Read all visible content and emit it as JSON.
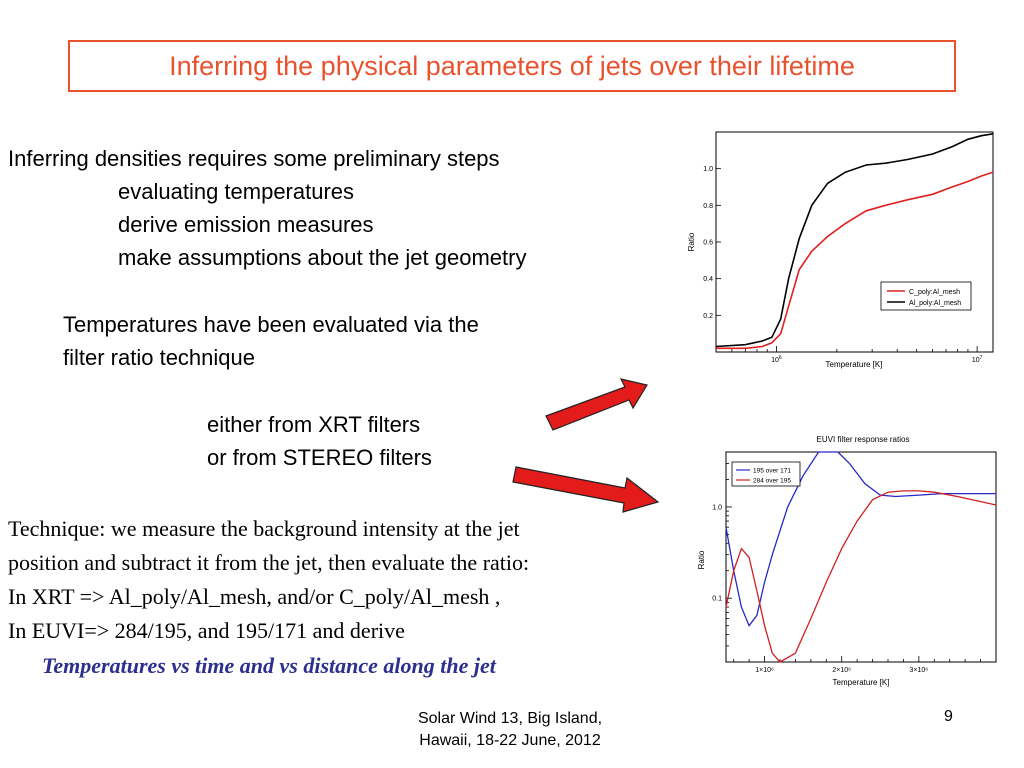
{
  "title": "Inferring the physical parameters of jets over their lifetime",
  "intro": {
    "heading": "Inferring densities requires some preliminary steps",
    "steps": [
      "evaluating temperatures",
      "derive emission measures",
      "make assumptions about the jet geometry"
    ]
  },
  "filter_ratio": {
    "line1": "Temperatures have been evaluated via the",
    "line2": "filter ratio technique",
    "options": [
      "either from XRT filters",
      "or from STEREO filters"
    ]
  },
  "technique": {
    "lines": [
      "Technique: we measure the background intensity at the jet",
      "position and subtract it from the jet, then evaluate the ratio:",
      "In XRT => Al_poly/Al_mesh, and/or C_poly/Al_mesh ,",
      "In EUVI=> 284/195, and 195/171 and derive"
    ],
    "emphasis": "Temperatures vs time and vs distance along the jet"
  },
  "footer": {
    "line1": "Solar Wind 13,  Big Island,",
    "line2": "Hawaii, 18-22 June, 2012",
    "page": "9"
  },
  "colors": {
    "title": "#e8532e",
    "arrow": "#e41b1b",
    "emphasis": "#2b2f8e"
  },
  "chart_data": [
    {
      "type": "line",
      "title": "",
      "xlabel": "Temperature [K]",
      "ylabel": "Ratio",
      "xscale": "log",
      "xlim": [
        500000,
        12000000
      ],
      "ylim": [
        0,
        1.2
      ],
      "xticks": [
        {
          "value": 1000000,
          "base": "10",
          "exp": "6"
        },
        {
          "value": 10000000,
          "base": "10",
          "exp": "7"
        }
      ],
      "yticks": [
        "0.2",
        "0.4",
        "0.6",
        "0.8",
        "1.0"
      ],
      "yticks_values": [
        0.2,
        0.4,
        0.6,
        0.8,
        1.0
      ],
      "legend_position": "bottom-right",
      "series": [
        {
          "name": "C_poly:Al_mesh",
          "color": "#e02020",
          "x": [
            500000,
            700000,
            850000,
            950000,
            1050000,
            1150000,
            1300000,
            1500000,
            1800000,
            2200000,
            2800000,
            3500000,
            4500000,
            6000000,
            7500000,
            9000000,
            10500000,
            12000000
          ],
          "y": [
            0.02,
            0.02,
            0.03,
            0.05,
            0.1,
            0.25,
            0.45,
            0.55,
            0.63,
            0.7,
            0.77,
            0.8,
            0.83,
            0.86,
            0.9,
            0.93,
            0.96,
            0.98
          ]
        },
        {
          "name": "Al_poly:Al_mesh",
          "color": "#000000",
          "x": [
            500000,
            700000,
            850000,
            950000,
            1050000,
            1150000,
            1300000,
            1500000,
            1800000,
            2200000,
            2800000,
            3500000,
            4500000,
            6000000,
            7500000,
            9000000,
            10500000,
            12000000
          ],
          "y": [
            0.03,
            0.04,
            0.06,
            0.08,
            0.18,
            0.4,
            0.62,
            0.8,
            0.92,
            0.98,
            1.02,
            1.03,
            1.05,
            1.08,
            1.12,
            1.16,
            1.18,
            1.19
          ]
        }
      ]
    },
    {
      "type": "line",
      "title": "EUVI filter response ratios",
      "xlabel": "Temperature [K]",
      "ylabel": "Ratio",
      "xscale": "linear",
      "yscale": "log",
      "xlim": [
        500000,
        4000000
      ],
      "ylim": [
        0.02,
        4
      ],
      "xticks": [
        {
          "value": 1000000,
          "label": "1×10⁶"
        },
        {
          "value": 2000000,
          "label": "2×10⁶"
        },
        {
          "value": 3000000,
          "label": "3×10⁶"
        }
      ],
      "yticks": [
        "1.0",
        "0.1"
      ],
      "yticks_values": [
        1.0,
        0.1
      ],
      "legend_position": "top-left",
      "series": [
        {
          "name": "195 over 171",
          "color": "#2828c8",
          "x": [
            500000,
            600000,
            700000,
            800000,
            900000,
            1000000,
            1100000,
            1300000,
            1500000,
            1700000,
            1800000,
            1950000,
            2100000,
            2300000,
            2500000,
            2700000,
            3000000,
            3300000,
            3600000,
            4000000
          ],
          "y": [
            0.6,
            0.2,
            0.08,
            0.05,
            0.065,
            0.15,
            0.3,
            1.0,
            2.2,
            4.0,
            4.0,
            4.0,
            3.0,
            1.8,
            1.35,
            1.3,
            1.35,
            1.4,
            1.4,
            1.4
          ]
        },
        {
          "name": "284 over 195",
          "color": "#d02020",
          "x": [
            500000,
            600000,
            700000,
            800000,
            900000,
            1000000,
            1100000,
            1200000,
            1400000,
            1600000,
            1800000,
            2000000,
            2200000,
            2400000,
            2600000,
            2800000,
            3000000,
            3200000,
            3500000,
            4000000
          ],
          "y": [
            0.08,
            0.2,
            0.35,
            0.28,
            0.12,
            0.05,
            0.025,
            0.02,
            0.025,
            0.06,
            0.15,
            0.35,
            0.7,
            1.2,
            1.45,
            1.5,
            1.5,
            1.45,
            1.3,
            1.05
          ]
        }
      ]
    }
  ]
}
